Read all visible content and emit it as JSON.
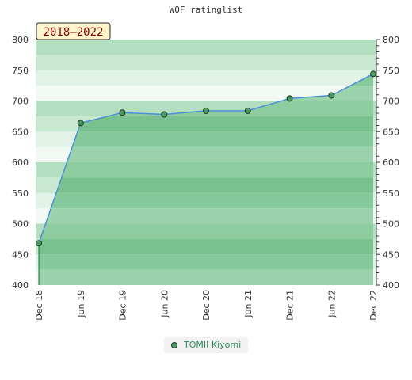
{
  "chart_data": {
    "type": "area",
    "title": "WOF ratinglist",
    "badge": "2018–2022",
    "categories": [
      "Dec 18",
      "Jun 19",
      "Dec 19",
      "Jun 20",
      "Dec 20",
      "Jun 21",
      "Dec 21",
      "Jun 22",
      "Dec 22"
    ],
    "series": [
      {
        "name": "TOMII Kiyomi",
        "values": [
          468,
          664,
          681,
          678,
          684,
          684,
          704,
          709,
          744
        ]
      }
    ],
    "ylim": [
      400,
      800
    ],
    "yticks": [
      400,
      450,
      500,
      550,
      600,
      650,
      700,
      750,
      800
    ],
    "grid": "horizontal bands",
    "legend_position": "bottom-center",
    "colors": {
      "line": "#4a90d9",
      "marker": "#4b9a66",
      "marker_stroke": "#1a3d1f",
      "area_light": "rgba(65,160,95,0.40)",
      "area_dark": "rgba(40,140,70,0.55)",
      "badge_bg": "#fff5cc",
      "badge_text": "#8b0000",
      "legend_text": "#2e8b57"
    }
  }
}
